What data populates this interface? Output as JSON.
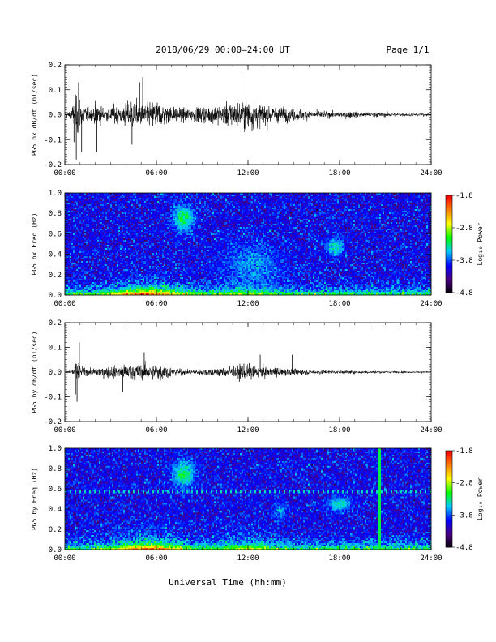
{
  "header": {
    "title": "2018/06/29  00:00–24:00 UT",
    "page": "Page 1/1"
  },
  "xaxis": {
    "title": "Universal Time (hh:mm)",
    "ticks": [
      "00:00",
      "06:00",
      "12:00",
      "18:00",
      "24:00"
    ],
    "range_hours": [
      0,
      24
    ]
  },
  "colorbar": {
    "label": "Log₁₀ Power",
    "ticks": [
      "-1.8",
      "-2.8",
      "-3.8",
      "-4.8"
    ],
    "range": [
      -4.8,
      -1.8
    ],
    "colormap": [
      "#000000",
      "#4b0082",
      "#0000ff",
      "#00c8ff",
      "#00ff00",
      "#ffff00",
      "#ff8000",
      "#ff0000"
    ]
  },
  "chart_data": [
    {
      "type": "line",
      "ylabel": "PG5 bx dB/dt (nT/sec)",
      "ylim": [
        -0.2,
        0.2
      ],
      "yticks": [
        "0.2",
        "0.1",
        "0.0",
        "-0.1",
        "-0.2"
      ],
      "xlim": [
        0,
        24
      ],
      "envelope_x": [
        0,
        0.4,
        0.7,
        0.9,
        1.1,
        1.4,
        1.8,
        2.1,
        2.3,
        2.6,
        3.0,
        3.5,
        4.0,
        4.5,
        5.0,
        5.5,
        6.0,
        6.5,
        7.0,
        7.5,
        8.0,
        9.0,
        10.0,
        11.0,
        11.5,
        12.0,
        12.5,
        13.0,
        14.0,
        15.0,
        16.0,
        17.0,
        18.0,
        19.0,
        20.0,
        21.0,
        22.0,
        23.0,
        24.0
      ],
      "envelope_amp": [
        0.01,
        0.03,
        0.11,
        0.13,
        0.08,
        0.05,
        0.03,
        0.09,
        0.06,
        0.04,
        0.05,
        0.06,
        0.08,
        0.1,
        0.07,
        0.08,
        0.09,
        0.07,
        0.05,
        0.05,
        0.04,
        0.05,
        0.06,
        0.08,
        0.09,
        0.1,
        0.09,
        0.07,
        0.05,
        0.04,
        0.03,
        0.02,
        0.02,
        0.02,
        0.015,
        0.015,
        0.01,
        0.01,
        0.008
      ],
      "spikes": [
        {
          "t": 0.6,
          "y": -0.11
        },
        {
          "t": 0.75,
          "y": -0.18
        },
        {
          "t": 0.9,
          "y": 0.13
        },
        {
          "t": 1.1,
          "y": -0.15
        },
        {
          "t": 2.1,
          "y": -0.15
        },
        {
          "t": 4.4,
          "y": -0.12
        },
        {
          "t": 4.9,
          "y": 0.13
        },
        {
          "t": 5.1,
          "y": 0.15
        },
        {
          "t": 11.6,
          "y": 0.17
        }
      ]
    },
    {
      "type": "heatmap",
      "ylabel": "PG5 bx Freq (Hz)",
      "ylim": [
        0,
        1.0
      ],
      "yticks": [
        "1.0",
        "0.8",
        "0.6",
        "0.4",
        "0.2",
        "0.0"
      ],
      "xlim": [
        0,
        24
      ],
      "zlim": [
        -4.8,
        -1.8
      ],
      "background": -4.0,
      "features": [
        {
          "t": 7.8,
          "f": 0.75,
          "dt": 0.7,
          "df": 0.13,
          "z": -3.2
        },
        {
          "t": 17.7,
          "f": 0.47,
          "dt": 0.6,
          "df": 0.09,
          "z": -3.4
        },
        {
          "t": 12.3,
          "f": 0.3,
          "dt": 1.8,
          "df": 0.2,
          "z": -3.6
        }
      ],
      "lines": []
    },
    {
      "type": "line",
      "ylabel": "PG5 by dB/dt (nT/sec)",
      "ylim": [
        -0.2,
        0.2
      ],
      "yticks": [
        "0.2",
        "0.1",
        "0.0",
        "-0.1",
        "-0.2"
      ],
      "xlim": [
        0,
        24
      ],
      "envelope_x": [
        0,
        0.4,
        0.7,
        0.9,
        1.1,
        1.4,
        1.8,
        2.1,
        2.3,
        2.6,
        3.0,
        3.5,
        4.0,
        4.5,
        5.0,
        5.5,
        6.0,
        6.5,
        7.0,
        7.5,
        8.0,
        9.0,
        10.0,
        11.0,
        11.5,
        12.0,
        12.5,
        13.0,
        14.0,
        15.0,
        16.0,
        17.0,
        18.0,
        19.0,
        20.0,
        21.0,
        22.0,
        23.0,
        24.0
      ],
      "envelope_amp": [
        0.005,
        0.02,
        0.06,
        0.07,
        0.03,
        0.02,
        0.02,
        0.03,
        0.03,
        0.03,
        0.04,
        0.04,
        0.05,
        0.05,
        0.05,
        0.05,
        0.06,
        0.05,
        0.03,
        0.02,
        0.015,
        0.02,
        0.03,
        0.04,
        0.05,
        0.05,
        0.045,
        0.035,
        0.03,
        0.02,
        0.015,
        0.012,
        0.01,
        0.01,
        0.008,
        0.008,
        0.006,
        0.006,
        0.005
      ],
      "spikes": [
        {
          "t": 0.7,
          "y": -0.09
        },
        {
          "t": 0.8,
          "y": -0.12
        },
        {
          "t": 0.95,
          "y": 0.12
        },
        {
          "t": 3.8,
          "y": -0.08
        },
        {
          "t": 5.2,
          "y": 0.08
        },
        {
          "t": 12.8,
          "y": 0.07
        },
        {
          "t": 14.9,
          "y": 0.07
        }
      ]
    },
    {
      "type": "heatmap",
      "ylabel": "PG5 by Freq (Hz)",
      "ylim": [
        0,
        1.0
      ],
      "yticks": [
        "1.0",
        "0.8",
        "0.6",
        "0.4",
        "0.2",
        "0.0"
      ],
      "xlim": [
        0,
        24
      ],
      "zlim": [
        -4.8,
        -1.8
      ],
      "background": -4.0,
      "features": [
        {
          "t": 7.8,
          "f": 0.75,
          "dt": 0.7,
          "df": 0.13,
          "z": -3.2
        },
        {
          "t": 18.0,
          "f": 0.45,
          "dt": 0.7,
          "df": 0.08,
          "z": -3.4
        },
        {
          "t": 14.1,
          "f": 0.38,
          "dt": 0.4,
          "df": 0.08,
          "z": -3.6
        }
      ],
      "lines": [
        {
          "t": 20.6,
          "z": -3.2
        },
        {
          "f": 0.57,
          "z": -3.4
        }
      ]
    }
  ]
}
